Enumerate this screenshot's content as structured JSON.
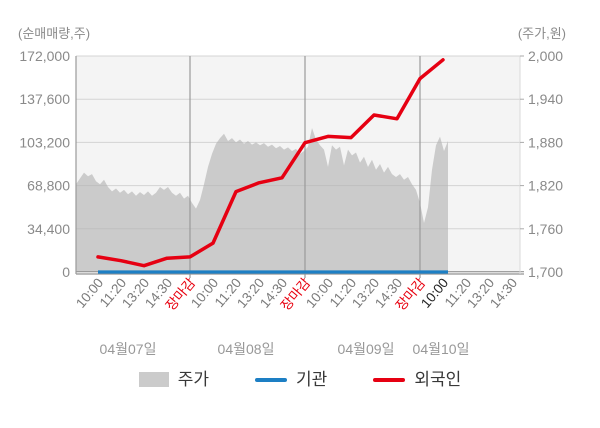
{
  "legend": {
    "price": "주가",
    "institution": "기관",
    "foreigner": "외국인"
  },
  "chart_data": {
    "type": "area+line",
    "description": "Intraday stock price (gray area, right axis) with institution and foreigner net trading volume lines (left axis) over four days",
    "days": [
      {
        "date": "04월07일",
        "times": [
          "10:00",
          "11:20",
          "13:20",
          "14:30",
          "장마감"
        ]
      },
      {
        "date": "04월08일",
        "times": [
          "10:00",
          "11:20",
          "13:20",
          "14:30",
          "장마감"
        ]
      },
      {
        "date": "04월09일",
        "times": [
          "10:00",
          "11:20",
          "13:20",
          "14:30",
          "장마감"
        ]
      },
      {
        "date": "04월10일",
        "times": [
          "10:00",
          "11:20",
          "13:20",
          "14:30"
        ]
      }
    ],
    "highlighted_label": {
      "day_index": 3,
      "time_index": 0
    },
    "left_axis": {
      "title": "(순매매량,주)",
      "min": 0,
      "max": 172000,
      "ticks": [
        172000,
        137600,
        103200,
        68800,
        34400,
        0
      ],
      "tick_labels": [
        "172,000",
        "137,600",
        "103,200",
        "68,800",
        "34,400",
        "0"
      ]
    },
    "right_axis": {
      "title": "(주가,원)",
      "min": 1700,
      "max": 2000,
      "ticks": [
        2000,
        1940,
        1880,
        1820,
        1760,
        1700
      ],
      "tick_labels": [
        "2,000",
        "1,940",
        "1,880",
        "1,820",
        "1,760",
        "1,700"
      ]
    },
    "grid": "on",
    "legend_position": "bottom",
    "colors": {
      "price_area": "#cbcbcb",
      "institution": "#1d7fc4",
      "foreigner": "#e60012",
      "close_label": "#e8000f",
      "highlight_label": "#222222",
      "time_label": "#7a7a7a",
      "date_label": "#989898",
      "axis_text": "#8a8a8a",
      "grid_line": "#e2e2e2",
      "axis_line": "#9a9a9a",
      "plot_bg": "#f4f4f4"
    },
    "series": {
      "price_area": {
        "name": "주가",
        "axis": "right",
        "values": [
          1822,
          1830,
          1838,
          1833,
          1836,
          1826,
          1822,
          1828,
          1818,
          1812,
          1816,
          1810,
          1814,
          1808,
          1812,
          1806,
          1811,
          1807,
          1812,
          1806,
          1810,
          1818,
          1814,
          1818,
          1810,
          1806,
          1810,
          1802,
          1806,
          1796,
          1788,
          1800,
          1822,
          1846,
          1864,
          1878,
          1886,
          1892,
          1882,
          1886,
          1880,
          1884,
          1878,
          1882,
          1877,
          1880,
          1876,
          1879,
          1874,
          1877,
          1872,
          1875,
          1870,
          1873,
          1868,
          1871,
          1864,
          1868,
          1874,
          1900,
          1884,
          1876,
          1870,
          1846,
          1876,
          1870,
          1874,
          1848,
          1870,
          1862,
          1866,
          1852,
          1860,
          1846,
          1856,
          1842,
          1850,
          1838,
          1846,
          1836,
          1832,
          1836,
          1828,
          1832,
          1822,
          1814,
          1796,
          1768,
          1790,
          1842,
          1876,
          1888,
          1868,
          1882
        ]
      },
      "institution": {
        "name": "기관",
        "axis": "left",
        "values": [
          0,
          0,
          0,
          0,
          0,
          0,
          0,
          0,
          0,
          0,
          0,
          0,
          0,
          0,
          0,
          0
        ]
      },
      "foreigner": {
        "name": "외국인",
        "axis": "left",
        "values": [
          12000,
          9000,
          5000,
          11000,
          12000,
          23000,
          64000,
          71000,
          75000,
          103000,
          108000,
          107000,
          125000,
          122000,
          154000,
          169000
        ]
      }
    }
  }
}
